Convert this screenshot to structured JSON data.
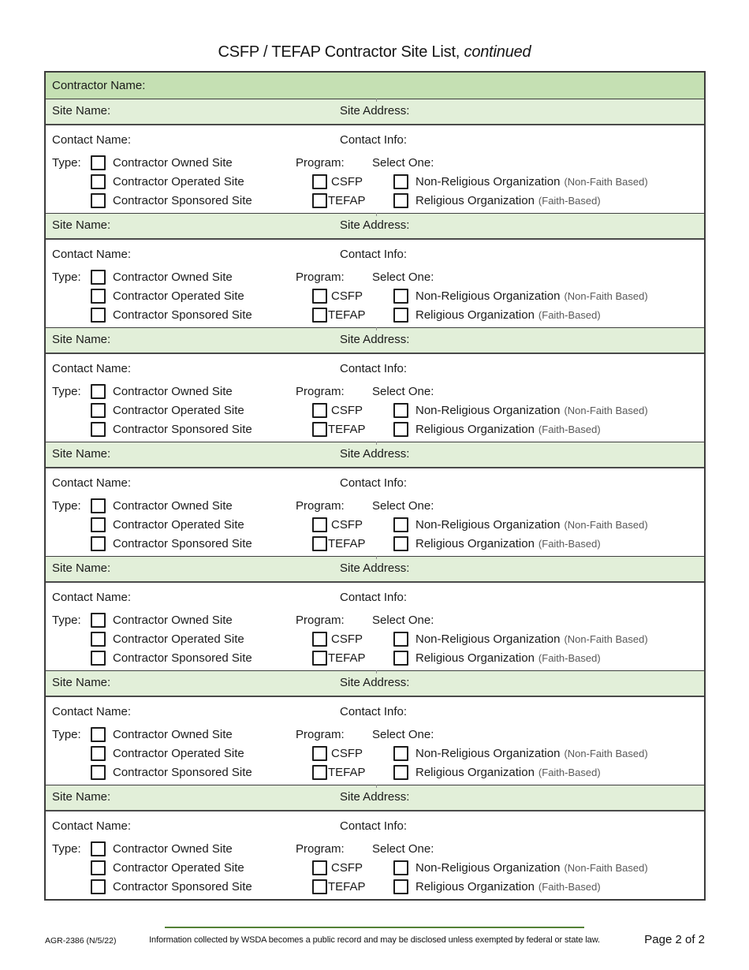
{
  "title": {
    "main": "CSFP / TEFAP Contractor Site List,",
    "suffix": "continued"
  },
  "table": {
    "contractor_label": "Contractor Name:",
    "site_count": 7,
    "site_header": {
      "name_label": "Site Name:",
      "address_label": "Site Address:"
    },
    "contact": {
      "name_label": "Contact Name:",
      "info_label": "Contact Info:"
    },
    "type_label": "Type:",
    "type_options": [
      "Contractor Owned Site",
      "Contractor Operated Site",
      "Contractor Sponsored Site"
    ],
    "program_label": "Program:",
    "program_options": [
      "CSFP",
      "TEFAP"
    ],
    "select_label": "Select One:",
    "select_options": [
      {
        "main": "Non-Religious Organization",
        "note": "(Non-Faith Based)"
      },
      {
        "main": "Religious Organization",
        "note": "(Faith-Based)"
      }
    ]
  },
  "footer": {
    "form_number": "AGR-2386 (N/5/22)",
    "disclosure": "Information collected by WSDA becomes a public record and may be disclosed unless exempted by federal or state law.",
    "page": "Page 2 of 2"
  },
  "colors": {
    "header_green": "#c5e0b3",
    "row_green": "#e2efd9",
    "border_dark": "#3f3f3f",
    "accent_line_green": "#538135",
    "note_gray": "#595959"
  }
}
